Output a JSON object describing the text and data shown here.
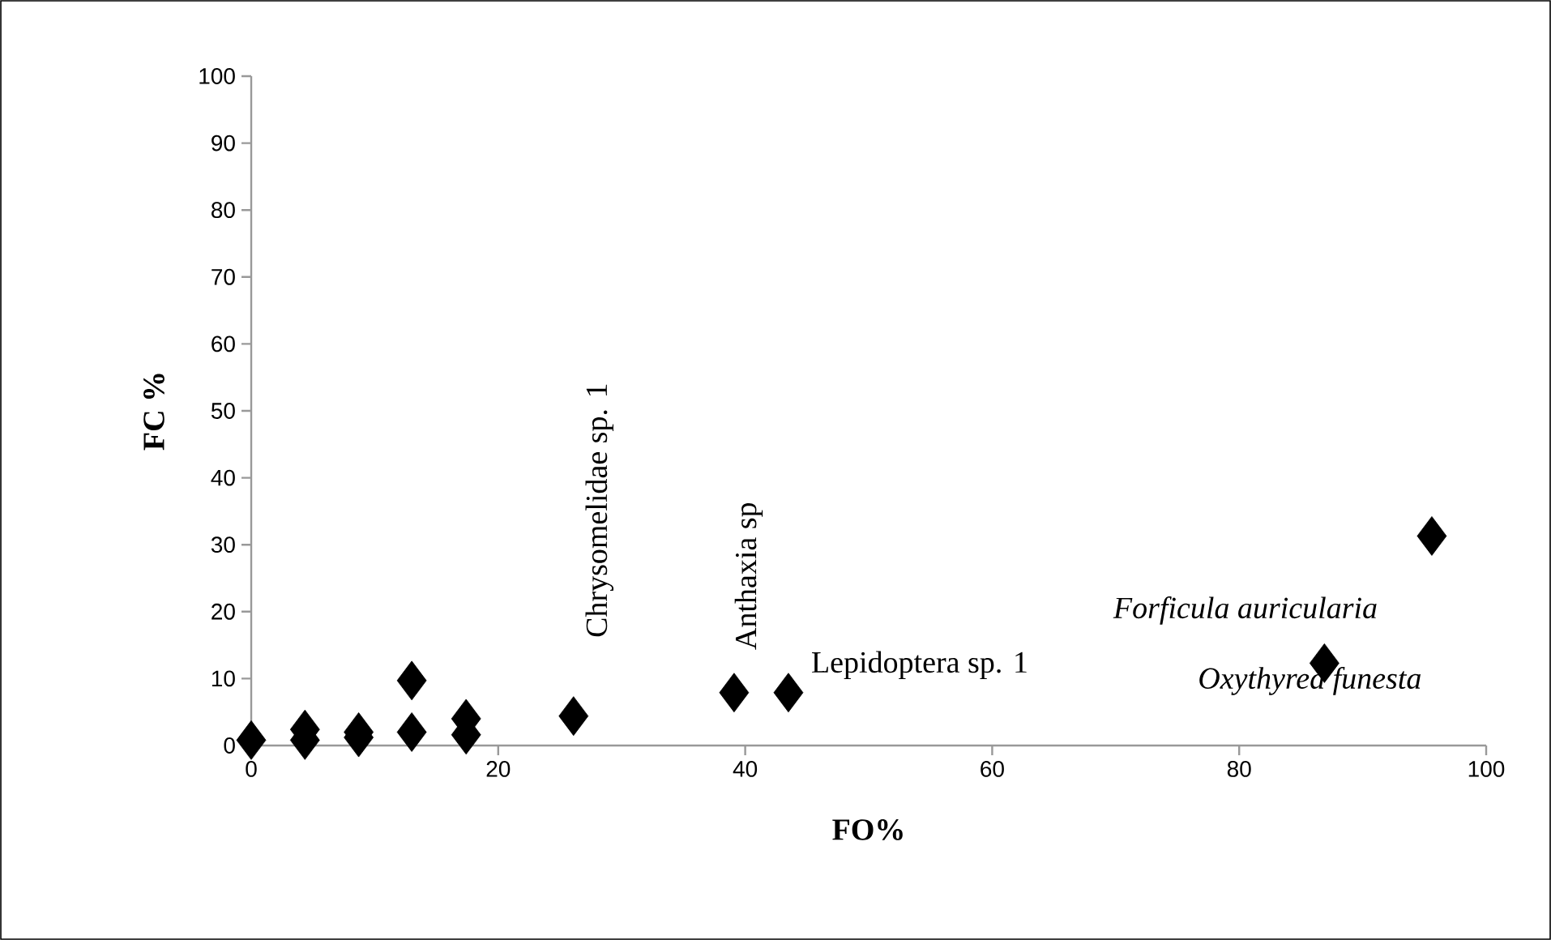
{
  "chart_data": {
    "type": "scatter",
    "xlabel": "FO%",
    "ylabel": "FC %",
    "x": [
      0,
      4.35,
      4.35,
      8.7,
      8.7,
      13,
      13,
      17.4,
      17.4,
      26.1,
      39.1,
      43.5,
      86.9,
      95.6
    ],
    "values": [
      0.8,
      2.4,
      0.8,
      2.0,
      1.2,
      9.7,
      2.0,
      4.0,
      1.6,
      4.4,
      7.9,
      7.9,
      12.3,
      31.3
    ],
    "color": "#000000",
    "marker": "diamond",
    "xlim": [
      0,
      100
    ],
    "ylim": [
      0,
      100
    ],
    "xticks": [
      0,
      20,
      40,
      60,
      80,
      100
    ],
    "yticks": [
      0,
      10,
      20,
      30,
      40,
      50,
      60,
      70,
      80,
      90,
      100
    ],
    "annotations": [
      {
        "text": "Chrysomelidae sp. 1",
        "x": 26.1,
        "y": 4.4
      },
      {
        "text": "Anthaxia sp",
        "x": 39.1,
        "y": 7.9
      },
      {
        "text": "Lepidoptera sp. 1",
        "x": 43.5,
        "y": 7.9
      },
      {
        "text": "Forficula auricularia",
        "x": 95.6,
        "y": 31.3
      },
      {
        "text": "Oxythyrea funesta",
        "x": 86.9,
        "y": 12.3
      }
    ]
  }
}
